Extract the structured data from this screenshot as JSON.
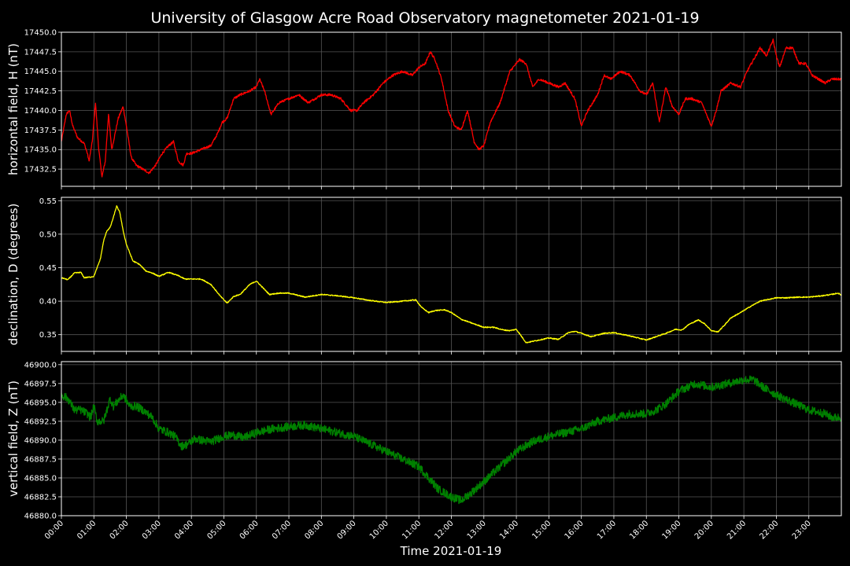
{
  "title": "University of Glasgow Acre Road Observatory magnetometer 2021-01-19",
  "xlabel": "Time 2021-01-19",
  "colors": {
    "background": "#000000",
    "axes": "#ffffff",
    "grid": "#555555",
    "H": "#ff0000",
    "D": "#ffff00",
    "Z": "#008000"
  },
  "chart_data": [
    {
      "type": "line",
      "ylabel": "horizontal field, H (nT)",
      "ylim": [
        17430.3,
        17450.0
      ],
      "yticks": [
        "17432.5",
        "17435.0",
        "17437.5",
        "17440.0",
        "17442.5",
        "17445.0",
        "17447.5",
        "17450.0"
      ],
      "xlim": [
        0,
        24
      ],
      "xticks": [
        "00:00",
        "01:00",
        "02:00",
        "03:00",
        "04:00",
        "05:00",
        "06:00",
        "07:00",
        "08:00",
        "09:00",
        "10:00",
        "11:00",
        "12:00",
        "13:00",
        "14:00",
        "15:00",
        "16:00",
        "17:00",
        "18:00",
        "19:00",
        "20:00",
        "21:00",
        "22:00",
        "23:00"
      ],
      "grid": true,
      "series": [
        {
          "color": "#ff0000",
          "noise": 0.3,
          "x": [
            0,
            0.15,
            0.25,
            0.35,
            0.5,
            0.7,
            0.8,
            0.85,
            0.95,
            1.05,
            1.15,
            1.25,
            1.35,
            1.45,
            1.55,
            1.65,
            1.75,
            1.9,
            2.0,
            2.15,
            2.3,
            2.5,
            2.7,
            2.9,
            3.1,
            3.3,
            3.45,
            3.6,
            3.75,
            3.85,
            4.0,
            4.3,
            4.6,
            4.8,
            4.95,
            5.1,
            5.3,
            5.5,
            5.8,
            6.0,
            6.1,
            6.25,
            6.45,
            6.7,
            7.0,
            7.3,
            7.6,
            8.0,
            8.3,
            8.6,
            8.9,
            9.1,
            9.3,
            9.6,
            9.9,
            10.2,
            10.5,
            10.8,
            11.0,
            11.2,
            11.35,
            11.5,
            11.7,
            11.9,
            12.1,
            12.3,
            12.5,
            12.7,
            12.85,
            13.0,
            13.2,
            13.5,
            13.8,
            14.1,
            14.3,
            14.5,
            14.7,
            15.0,
            15.3,
            15.5,
            15.8,
            16.0,
            16.2,
            16.5,
            16.7,
            16.9,
            17.2,
            17.5,
            17.8,
            18.0,
            18.2,
            18.4,
            18.6,
            18.8,
            19.0,
            19.2,
            19.4,
            19.7,
            20.0,
            20.15,
            20.3,
            20.6,
            20.9,
            21.1,
            21.3,
            21.5,
            21.7,
            21.9,
            22.0,
            22.1,
            22.3,
            22.5,
            22.7,
            22.9,
            23.1,
            23.3,
            23.5,
            23.7,
            23.9,
            24.0
          ],
          "y": [
            17436.0,
            17439.5,
            17440.0,
            17438.0,
            17436.5,
            17435.8,
            17434.5,
            17433.5,
            17436.0,
            17441.0,
            17435.0,
            17431.5,
            17433.5,
            17439.5,
            17435.0,
            17437.0,
            17439.0,
            17440.5,
            17438.0,
            17434.0,
            17433.0,
            17432.5,
            17432.0,
            17433.0,
            17434.5,
            17435.5,
            17436.0,
            17433.5,
            17433.0,
            17434.5,
            17434.5,
            17435.0,
            17435.5,
            17437.0,
            17438.5,
            17439.0,
            17441.5,
            17442.0,
            17442.5,
            17443.0,
            17444.0,
            17442.5,
            17439.5,
            17441.0,
            17441.5,
            17442.0,
            17441.0,
            17442.0,
            17442.0,
            17441.5,
            17440.0,
            17440.0,
            17441.0,
            17442.0,
            17443.5,
            17444.5,
            17445.0,
            17444.5,
            17445.5,
            17446.0,
            17447.5,
            17446.5,
            17444.0,
            17440.0,
            17438.0,
            17437.5,
            17440.0,
            17436.0,
            17435.0,
            17435.5,
            17438.5,
            17441.0,
            17445.0,
            17446.5,
            17446.0,
            17443.0,
            17444.0,
            17443.5,
            17443.0,
            17443.5,
            17441.5,
            17438.0,
            17440.0,
            17442.0,
            17444.5,
            17444.0,
            17445.0,
            17444.5,
            17442.5,
            17442.0,
            17443.5,
            17438.5,
            17443.0,
            17440.5,
            17439.5,
            17441.5,
            17441.5,
            17441.0,
            17438.0,
            17440.0,
            17442.5,
            17443.5,
            17443.0,
            17445.0,
            17446.5,
            17448.0,
            17447.0,
            17449.0,
            17447.0,
            17445.5,
            17448.0,
            17448.0,
            17446.0,
            17446.0,
            17444.5,
            17444.0,
            17443.5,
            17444.0,
            17444.0,
            17444.0
          ]
        }
      ]
    },
    {
      "type": "line",
      "ylabel": "declination, D (degrees)",
      "ylim": [
        0.325,
        0.555
      ],
      "yticks": [
        "0.35",
        "0.40",
        "0.45",
        "0.50",
        "0.55"
      ],
      "xlim": [
        0,
        24
      ],
      "xticks": [
        "00:00",
        "01:00",
        "02:00",
        "03:00",
        "04:00",
        "05:00",
        "06:00",
        "07:00",
        "08:00",
        "09:00",
        "10:00",
        "11:00",
        "12:00",
        "13:00",
        "14:00",
        "15:00",
        "16:00",
        "17:00",
        "18:00",
        "19:00",
        "20:00",
        "21:00",
        "22:00",
        "23:00"
      ],
      "grid": true,
      "series": [
        {
          "color": "#ffff00",
          "noise": 0.0015,
          "x": [
            0,
            0.2,
            0.4,
            0.6,
            0.7,
            0.9,
            1.0,
            1.1,
            1.2,
            1.3,
            1.4,
            1.5,
            1.6,
            1.7,
            1.8,
            1.9,
            2.0,
            2.2,
            2.4,
            2.6,
            2.8,
            3.0,
            3.3,
            3.6,
            3.8,
            4.0,
            4.3,
            4.6,
            4.9,
            5.1,
            5.3,
            5.5,
            5.8,
            6.0,
            6.2,
            6.4,
            6.7,
            7.0,
            7.5,
            8.0,
            8.5,
            9.0,
            9.5,
            10.0,
            10.5,
            10.9,
            11.1,
            11.3,
            11.5,
            11.8,
            12.0,
            12.3,
            12.7,
            13.0,
            13.3,
            13.6,
            13.8,
            14.0,
            14.3,
            14.7,
            15.0,
            15.3,
            15.6,
            15.8,
            16.0,
            16.3,
            16.7,
            17.0,
            17.5,
            18.0,
            18.3,
            18.6,
            18.9,
            19.1,
            19.3,
            19.6,
            19.8,
            20.0,
            20.2,
            20.4,
            20.6,
            20.9,
            21.2,
            21.5,
            21.8,
            22.0,
            22.3,
            22.7,
            23.0,
            23.4,
            23.7,
            23.9,
            24.0
          ],
          "y": [
            0.435,
            0.432,
            0.442,
            0.443,
            0.435,
            0.436,
            0.437,
            0.45,
            0.463,
            0.49,
            0.505,
            0.51,
            0.525,
            0.542,
            0.532,
            0.505,
            0.485,
            0.46,
            0.455,
            0.445,
            0.442,
            0.437,
            0.443,
            0.438,
            0.433,
            0.433,
            0.433,
            0.425,
            0.407,
            0.397,
            0.407,
            0.41,
            0.425,
            0.43,
            0.42,
            0.41,
            0.412,
            0.412,
            0.406,
            0.41,
            0.408,
            0.405,
            0.401,
            0.398,
            0.4,
            0.402,
            0.39,
            0.383,
            0.386,
            0.387,
            0.383,
            0.373,
            0.366,
            0.361,
            0.361,
            0.357,
            0.356,
            0.358,
            0.338,
            0.342,
            0.345,
            0.343,
            0.353,
            0.355,
            0.352,
            0.347,
            0.352,
            0.353,
            0.348,
            0.342,
            0.347,
            0.352,
            0.358,
            0.357,
            0.365,
            0.372,
            0.366,
            0.356,
            0.354,
            0.364,
            0.375,
            0.383,
            0.392,
            0.4,
            0.403,
            0.405,
            0.405,
            0.406,
            0.406,
            0.408,
            0.41,
            0.412,
            0.409
          ]
        }
      ]
    },
    {
      "type": "line",
      "ylabel": "vertical field, Z (nT)",
      "ylim": [
        46880.0,
        46900.4
      ],
      "yticks": [
        "46880.0",
        "46882.5",
        "46885.0",
        "46887.5",
        "46890.0",
        "46892.5",
        "46895.0",
        "46897.5",
        "46900.0"
      ],
      "xlim": [
        0,
        24
      ],
      "xticks": [
        "00:00",
        "01:00",
        "02:00",
        "03:00",
        "04:00",
        "05:00",
        "06:00",
        "07:00",
        "08:00",
        "09:00",
        "10:00",
        "11:00",
        "12:00",
        "13:00",
        "14:00",
        "15:00",
        "16:00",
        "17:00",
        "18:00",
        "19:00",
        "20:00",
        "21:00",
        "22:00",
        "23:00"
      ],
      "grid": true,
      "series": [
        {
          "color": "#008000",
          "noise": 1.1,
          "x": [
            0,
            0.2,
            0.4,
            0.6,
            0.8,
            0.9,
            1.0,
            1.1,
            1.3,
            1.5,
            1.6,
            1.8,
            1.9,
            2.1,
            2.3,
            2.5,
            2.8,
            3.0,
            3.3,
            3.5,
            3.7,
            3.9,
            4.1,
            4.3,
            4.6,
            5.0,
            5.3,
            5.6,
            6.0,
            6.5,
            7.0,
            7.5,
            8.0,
            8.5,
            9.0,
            9.5,
            10.0,
            10.5,
            11.0,
            11.3,
            11.6,
            12.0,
            12.3,
            12.6,
            13.0,
            13.5,
            14.0,
            14.5,
            15.0,
            15.5,
            16.0,
            16.5,
            17.0,
            17.5,
            18.0,
            18.3,
            18.6,
            19.0,
            19.5,
            20.0,
            20.5,
            21.0,
            21.3,
            21.6,
            22.0,
            22.5,
            23.0,
            23.5,
            23.7,
            24.0
          ],
          "y": [
            46896.0,
            46895.5,
            46894.0,
            46894.0,
            46893.5,
            46893.0,
            46894.5,
            46892.5,
            46892.5,
            46895.5,
            46894.5,
            46895.5,
            46896.0,
            46894.5,
            46894.5,
            46894.0,
            46893.0,
            46891.5,
            46891.0,
            46890.5,
            46889.2,
            46889.5,
            46890.2,
            46890.0,
            46889.8,
            46890.5,
            46890.7,
            46890.3,
            46891.0,
            46891.5,
            46891.8,
            46892.0,
            46891.5,
            46891.0,
            46890.5,
            46889.5,
            46888.5,
            46887.5,
            46886.5,
            46885.0,
            46883.5,
            46882.5,
            46882.0,
            46883.0,
            46884.5,
            46886.5,
            46888.5,
            46889.8,
            46890.5,
            46891.0,
            46891.5,
            46892.5,
            46893.0,
            46893.5,
            46893.5,
            46894.0,
            46894.8,
            46896.5,
            46897.5,
            46897.0,
            46897.5,
            46898.0,
            46898.0,
            46897.0,
            46896.0,
            46895.0,
            46894.0,
            46893.5,
            46893.0,
            46893.0
          ]
        }
      ]
    }
  ]
}
